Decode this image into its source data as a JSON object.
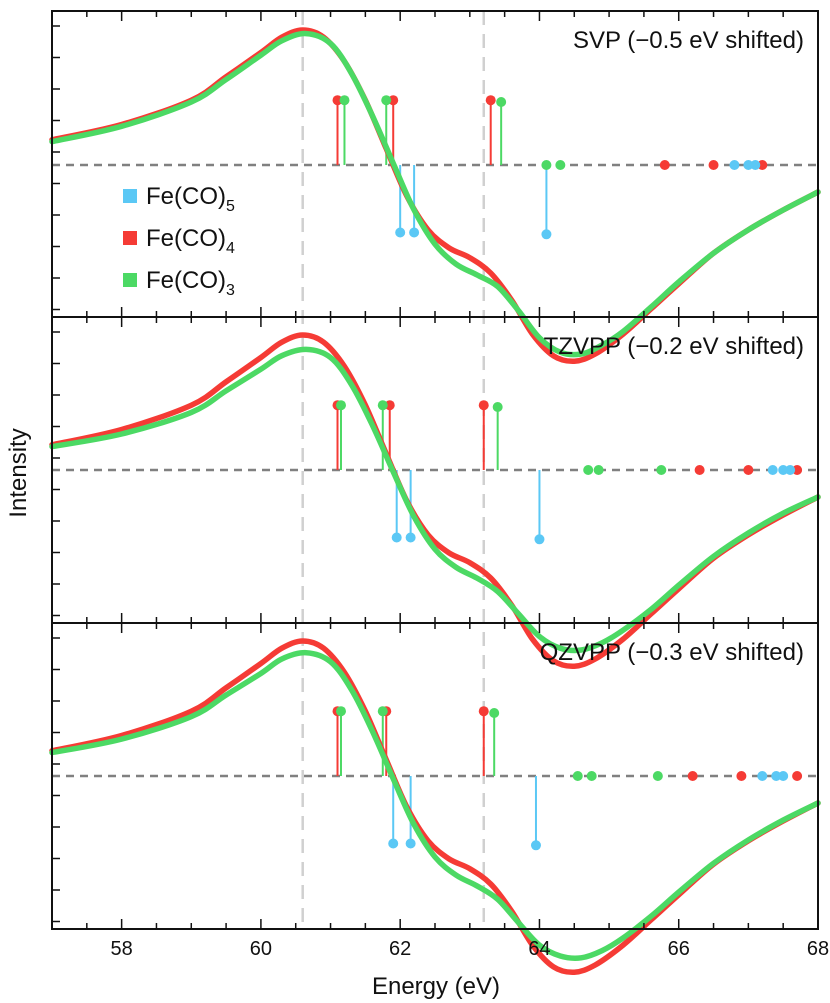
{
  "chart_data": {
    "type": "line",
    "xlabel": "Energy (eV)",
    "ylabel": "Intensity",
    "xlim": [
      57,
      68
    ],
    "x_ticks": [
      "58",
      "60",
      "62",
      "64",
      "66",
      "68"
    ],
    "reference_lines_x": [
      60.6,
      63.2
    ],
    "grid": false,
    "legend": {
      "placement": "left-inside-top-panel",
      "entries": [
        {
          "label": "Fe(CO)",
          "sub": "5",
          "color": "#5bc8f5"
        },
        {
          "label": "Fe(CO)",
          "sub": "4",
          "color": "#f53b35"
        },
        {
          "label": "Fe(CO)",
          "sub": "3",
          "color": "#4cd964"
        }
      ]
    },
    "panels": [
      {
        "title": "SVP (−0.5 eV shifted)",
        "series": [
          {
            "name": "Fe(CO)4",
            "color": "#f53b35",
            "x": [
              57,
              58,
              59,
              59.5,
              60,
              60.3,
              60.6,
              60.9,
              61.2,
              61.5,
              61.8,
              62.1,
              62.4,
              62.7,
              63.0,
              63.3,
              63.6,
              63.9,
              64.2,
              64.5,
              64.8,
              65.2,
              65.6,
              66.0,
              66.5,
              67.0,
              67.5,
              68.0
            ],
            "y": [
              0.28,
              0.45,
              0.72,
              0.98,
              1.25,
              1.42,
              1.5,
              1.42,
              1.15,
              0.72,
              0.18,
              -0.35,
              -0.72,
              -0.92,
              -1.03,
              -1.2,
              -1.5,
              -1.88,
              -2.12,
              -2.18,
              -2.1,
              -1.88,
              -1.6,
              -1.32,
              -0.98,
              -0.72,
              -0.5,
              -0.3
            ]
          },
          {
            "name": "Fe(CO)3",
            "color": "#4cd964",
            "x": [
              57,
              58,
              59,
              59.5,
              60,
              60.3,
              60.65,
              61.0,
              61.3,
              61.6,
              61.9,
              62.2,
              62.5,
              62.8,
              63.1,
              63.4,
              63.7,
              64.0,
              64.3,
              64.6,
              64.9,
              65.2,
              65.6,
              66.0,
              66.5,
              67.0,
              67.5,
              68.0
            ],
            "y": [
              0.26,
              0.43,
              0.7,
              0.95,
              1.22,
              1.38,
              1.46,
              1.35,
              1.02,
              0.55,
              0.02,
              -0.5,
              -0.88,
              -1.1,
              -1.22,
              -1.35,
              -1.62,
              -1.92,
              -2.08,
              -2.1,
              -2.0,
              -1.85,
              -1.58,
              -1.3,
              -0.98,
              -0.72,
              -0.5,
              -0.3
            ]
          }
        ],
        "sticks": [
          {
            "series": "Fe(CO)4",
            "x": [
              61.1,
              61.9,
              63.3
            ],
            "y": [
              0.72,
              0.72,
              0.72
            ]
          },
          {
            "series": "Fe(CO)3",
            "x": [
              61.2,
              61.8,
              63.45
            ],
            "y": [
              0.72,
              0.72,
              0.7
            ]
          },
          {
            "series": "Fe(CO)5",
            "x": [
              62.0,
              62.2,
              64.1
            ],
            "y": [
              -0.75,
              -0.75,
              -0.77
            ]
          }
        ],
        "baseline_dots": [
          {
            "series": "Fe(CO)3",
            "x": [
              64.1,
              64.3
            ]
          },
          {
            "series": "Fe(CO)4",
            "x": [
              65.8,
              66.5,
              67.2
            ]
          },
          {
            "series": "Fe(CO)5",
            "x": [
              66.8,
              67.0,
              67.1
            ]
          }
        ]
      },
      {
        "title": "TZVPP (−0.2 eV shifted)",
        "series": [
          {
            "name": "Fe(CO)4",
            "color": "#f53b35",
            "x": [
              57,
              58,
              59,
              59.5,
              60,
              60.3,
              60.6,
              60.9,
              61.2,
              61.5,
              61.8,
              62.1,
              62.4,
              62.7,
              63.0,
              63.3,
              63.6,
              63.9,
              64.2,
              64.5,
              64.8,
              65.2,
              65.6,
              66.0,
              66.5,
              67.0,
              67.5,
              68.0
            ],
            "y": [
              0.28,
              0.45,
              0.72,
              0.98,
              1.25,
              1.42,
              1.5,
              1.42,
              1.15,
              0.72,
              0.18,
              -0.35,
              -0.72,
              -0.92,
              -1.03,
              -1.2,
              -1.5,
              -1.88,
              -2.12,
              -2.18,
              -2.1,
              -1.88,
              -1.6,
              -1.32,
              -0.98,
              -0.72,
              -0.5,
              -0.3
            ]
          },
          {
            "name": "Fe(CO)3",
            "color": "#4cd964",
            "x": [
              57,
              58,
              59,
              59.5,
              60,
              60.3,
              60.65,
              61.0,
              61.3,
              61.6,
              61.9,
              62.2,
              62.5,
              62.8,
              63.1,
              63.4,
              63.7,
              64.0,
              64.3,
              64.6,
              64.9,
              65.2,
              65.6,
              66.0,
              66.5,
              67.0,
              67.5,
              68.0
            ],
            "y": [
              0.26,
              0.4,
              0.64,
              0.88,
              1.12,
              1.27,
              1.34,
              1.25,
              0.95,
              0.5,
              -0.02,
              -0.52,
              -0.88,
              -1.08,
              -1.2,
              -1.35,
              -1.6,
              -1.85,
              -1.98,
              -2.0,
              -1.92,
              -1.78,
              -1.55,
              -1.28,
              -0.96,
              -0.7,
              -0.48,
              -0.3
            ]
          }
        ],
        "sticks": [
          {
            "series": "Fe(CO)4",
            "x": [
              61.1,
              61.85,
              63.2
            ],
            "y": [
              0.72,
              0.72,
              0.72
            ]
          },
          {
            "series": "Fe(CO)3",
            "x": [
              61.15,
              61.75,
              63.4
            ],
            "y": [
              0.72,
              0.72,
              0.7
            ]
          },
          {
            "series": "Fe(CO)5",
            "x": [
              61.95,
              62.15,
              64.0
            ],
            "y": [
              -0.75,
              -0.75,
              -0.77
            ]
          }
        ],
        "baseline_dots": [
          {
            "series": "Fe(CO)3",
            "x": [
              64.7,
              64.85,
              65.75
            ]
          },
          {
            "series": "Fe(CO)4",
            "x": [
              66.3,
              67.0,
              67.7
            ]
          },
          {
            "series": "Fe(CO)5",
            "x": [
              67.35,
              67.5,
              67.6
            ]
          }
        ]
      },
      {
        "title": "QZVPP (−0.3 eV shifted)",
        "series": [
          {
            "name": "Fe(CO)4",
            "color": "#f53b35",
            "x": [
              57,
              58,
              59,
              59.5,
              60,
              60.3,
              60.6,
              60.9,
              61.2,
              61.5,
              61.8,
              62.1,
              62.4,
              62.7,
              63.0,
              63.3,
              63.6,
              63.9,
              64.2,
              64.5,
              64.8,
              65.2,
              65.6,
              66.0,
              66.5,
              67.0,
              67.5,
              68.0
            ],
            "y": [
              0.28,
              0.45,
              0.72,
              0.98,
              1.25,
              1.42,
              1.5,
              1.42,
              1.15,
              0.72,
              0.18,
              -0.35,
              -0.72,
              -0.92,
              -1.03,
              -1.2,
              -1.5,
              -1.88,
              -2.12,
              -2.18,
              -2.1,
              -1.88,
              -1.6,
              -1.32,
              -0.98,
              -0.72,
              -0.5,
              -0.3
            ]
          },
          {
            "name": "Fe(CO)3",
            "color": "#4cd964",
            "x": [
              57,
              58,
              59,
              59.5,
              60,
              60.3,
              60.65,
              61.0,
              61.3,
              61.6,
              61.9,
              62.2,
              62.5,
              62.8,
              63.1,
              63.4,
              63.7,
              64.0,
              64.3,
              64.6,
              64.9,
              65.2,
              65.6,
              66.0,
              66.5,
              67.0,
              67.5,
              68.0
            ],
            "y": [
              0.26,
              0.41,
              0.66,
              0.9,
              1.14,
              1.3,
              1.37,
              1.27,
              0.96,
              0.5,
              -0.03,
              -0.54,
              -0.9,
              -1.1,
              -1.22,
              -1.37,
              -1.63,
              -1.88,
              -2.0,
              -2.02,
              -1.94,
              -1.8,
              -1.56,
              -1.29,
              -0.97,
              -0.71,
              -0.49,
              -0.3
            ]
          }
        ],
        "sticks": [
          {
            "series": "Fe(CO)4",
            "x": [
              61.1,
              61.8,
              63.2
            ],
            "y": [
              0.72,
              0.72,
              0.72
            ]
          },
          {
            "series": "Fe(CO)3",
            "x": [
              61.15,
              61.75,
              63.35
            ],
            "y": [
              0.72,
              0.72,
              0.7
            ]
          },
          {
            "series": "Fe(CO)5",
            "x": [
              61.9,
              62.15,
              63.95
            ],
            "y": [
              -0.75,
              -0.75,
              -0.77
            ]
          }
        ],
        "baseline_dots": [
          {
            "series": "Fe(CO)3",
            "x": [
              64.55,
              64.75,
              65.7
            ]
          },
          {
            "series": "Fe(CO)4",
            "x": [
              66.2,
              66.9,
              67.7
            ]
          },
          {
            "series": "Fe(CO)5",
            "x": [
              67.2,
              67.4,
              67.5
            ]
          }
        ]
      }
    ]
  }
}
